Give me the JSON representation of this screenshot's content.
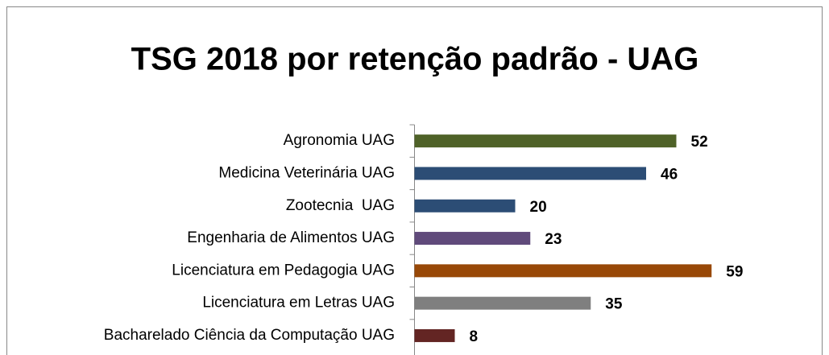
{
  "chart_data": {
    "type": "bar",
    "orientation": "horizontal",
    "title": "TSG 2018 por retenção padrão - UAG",
    "categories": [
      "Agronomia UAG",
      "Medicina Veterinária UAG",
      "Zootecnia  UAG",
      "Engenharia de Alimentos UAG",
      "Licenciatura em Pedagogia UAG",
      "Licenciatura em Letras UAG",
      "Bacharelado Ciência da Computação UAG"
    ],
    "values": [
      52,
      46,
      20,
      23,
      59,
      35,
      8
    ],
    "colors": [
      "#4f6228",
      "#2c4d75",
      "#2c4d75",
      "#604a7b",
      "#984807",
      "#7f7f7f",
      "#632523"
    ]
  }
}
